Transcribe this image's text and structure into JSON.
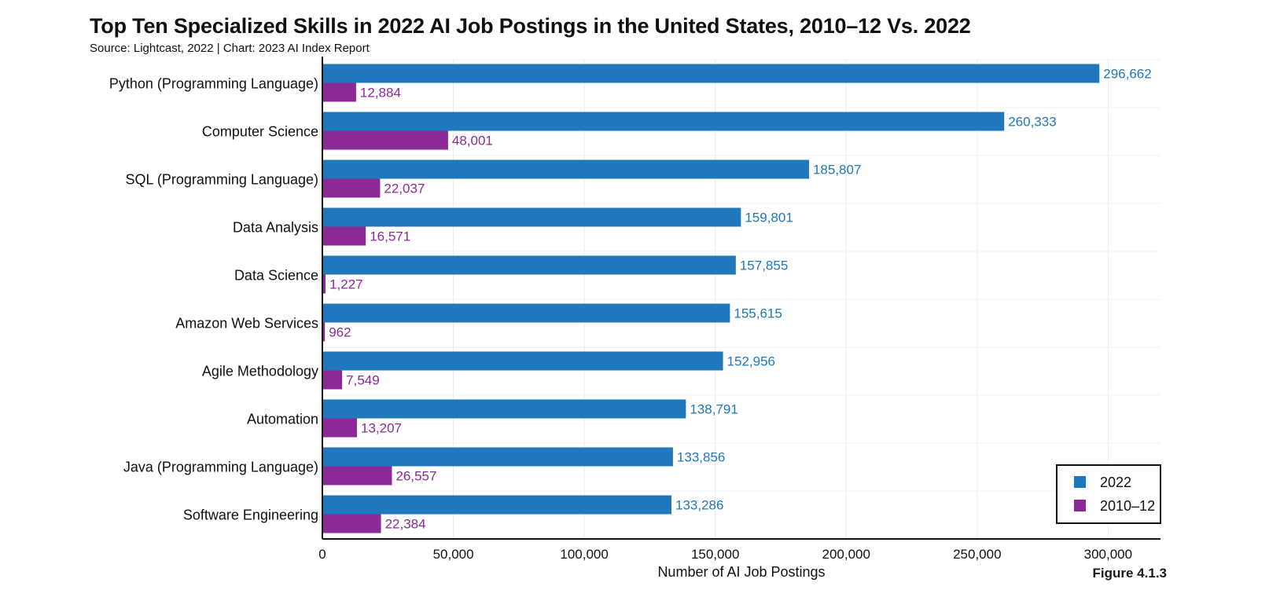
{
  "chart_data": {
    "type": "bar",
    "orientation": "horizontal",
    "title": "Top Ten Specialized Skills in 2022 AI Job Postings in the United States, 2010–12 Vs. 2022",
    "subtitle": "Source: Lightcast, 2022 | Chart: 2023 AI Index Report",
    "figure_label": "Figure 4.1.3",
    "xlabel": "Number of AI Job Postings",
    "ylabel": "",
    "xlim": [
      0,
      320000
    ],
    "xticks": [
      0,
      50000,
      100000,
      150000,
      200000,
      250000,
      300000
    ],
    "xtick_labels": [
      "0",
      "50,000",
      "100,000",
      "150,000",
      "200,000",
      "250,000",
      "300,000"
    ],
    "grid": true,
    "legend_position": "bottom-right",
    "categories": [
      "Python (Programming Language)",
      "Computer Science",
      "SQL (Programming Language)",
      "Data Analysis",
      "Data Science",
      "Amazon Web Services",
      "Agile Methodology",
      "Automation",
      "Java (Programming Language)",
      "Software Engineering"
    ],
    "series": [
      {
        "name": "2022",
        "color": "#1f78bb",
        "values": [
          296662,
          260333,
          185807,
          159801,
          157855,
          155615,
          152956,
          138791,
          133856,
          133286
        ],
        "labels": [
          "296,662",
          "260,333",
          "185,807",
          "159,801",
          "157,855",
          "155,615",
          "152,956",
          "138,791",
          "133,856",
          "133,286"
        ]
      },
      {
        "name": "2010–12",
        "color": "#8b2a97",
        "values": [
          12884,
          48001,
          22037,
          16571,
          1227,
          962,
          7549,
          13207,
          26557,
          22384
        ],
        "labels": [
          "12,884",
          "48,001",
          "22,037",
          "16,571",
          "1,227",
          "962",
          "7,549",
          "13,207",
          "26,557",
          "22,384"
        ]
      }
    ]
  }
}
